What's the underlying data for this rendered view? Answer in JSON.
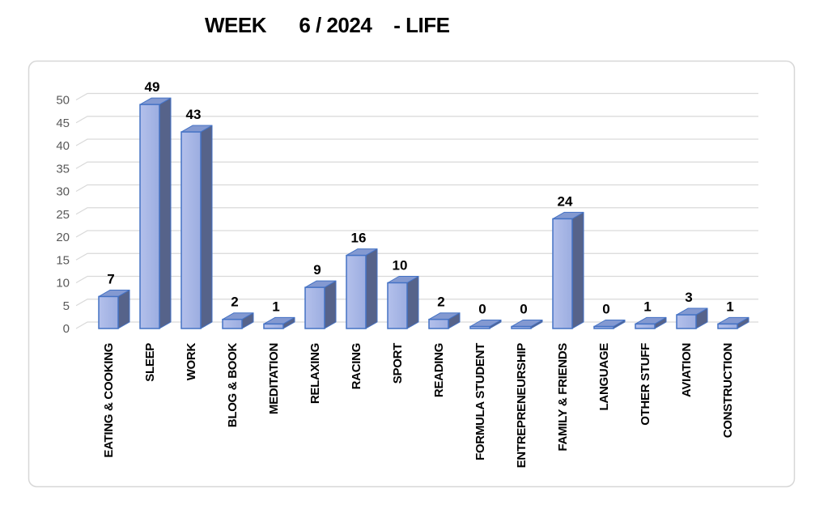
{
  "chart_data": {
    "type": "bar",
    "variant": "3d-clustered-column",
    "title": "WEEK      6 / 2024    - LIFE",
    "categories": [
      "EATING & COOKING",
      "SLEEP",
      "WORK",
      "BLOG & BOOK",
      "MEDITATION",
      "RELAXING",
      "RACING",
      "SPORT",
      "READING",
      "FORMULA STUDENT",
      "ENTREPRENEURSHIP",
      "FAMILY & FRIENDS",
      "LANGUAGE",
      "OTHER STUFF",
      "AVIATION",
      "CONSTRUCTION"
    ],
    "values": [
      7,
      49,
      43,
      2,
      1,
      9,
      16,
      10,
      2,
      0,
      0,
      24,
      0,
      1,
      3,
      1
    ],
    "xlabel": "",
    "ylabel": "",
    "ylim": [
      0,
      50
    ],
    "yticks": [
      0,
      5,
      10,
      15,
      20,
      25,
      30,
      35,
      40,
      45,
      50
    ],
    "grid": true,
    "legend": false,
    "data_labels": true,
    "colors": {
      "bar_front_light": "#b3c0eb",
      "bar_front_dark": "#9cade0",
      "bar_top": "#8399d1",
      "bar_side": "#56638a",
      "bar_border": "#4472c4",
      "gridline": "#d9d9d9",
      "tick_label": "#595959",
      "value_label": "#000000",
      "category_label": "#000000",
      "chart_border": "#d7d7d7",
      "background": "#ffffff"
    }
  }
}
